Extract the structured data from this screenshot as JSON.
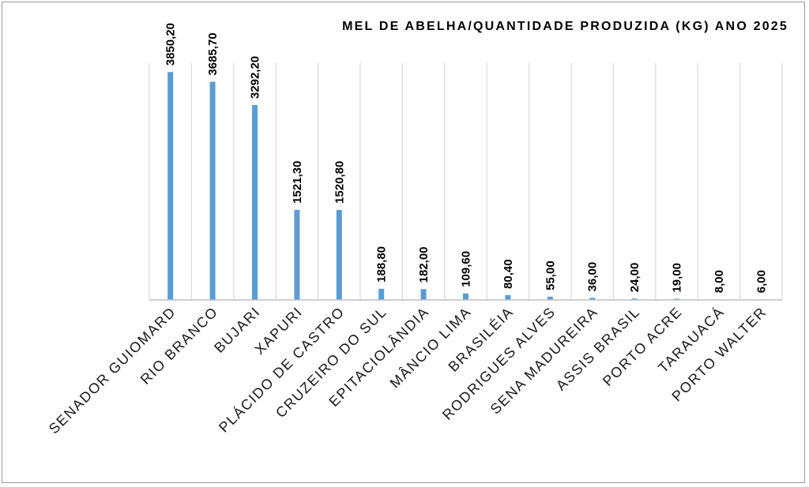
{
  "chart_data": {
    "type": "bar",
    "title": "MEL DE ABELHA/QUANTIDADE PRODUZIDA (KG) ANO 2025",
    "categories": [
      "SENADOR GUIOMARD",
      "RIO BRANCO",
      "BUJARI",
      "XAPURI",
      "PLÁCIDO DE CASTRO",
      "CRUZEIRO DO SUL",
      "EPITACIOLÂNDIA",
      "MÂNCIO LIMA",
      "BRASILÉIA",
      "RODRIGUES ALVES",
      "SENA MADUREIRA",
      "ASSIS BRASIL",
      "PORTO ACRE",
      "TARAUACÁ",
      "PORTO WALTER"
    ],
    "values": [
      3850.2,
      3685.7,
      3292.2,
      1521.3,
      1520.8,
      188.8,
      182.0,
      109.6,
      80.4,
      55.0,
      36.0,
      24.0,
      19.0,
      8.0,
      6.0
    ],
    "value_labels": [
      "3850,20",
      "3685,70",
      "3292,20",
      "1521,30",
      "1520,80",
      "188,80",
      "182,00",
      "109,60",
      "80,40",
      "55,00",
      "36,00",
      "24,00",
      "19,00",
      "8,00",
      "6,00"
    ],
    "ylim": [
      0,
      4000
    ],
    "grid": "vertical",
    "bar_color": "#5b9bd5",
    "grid_color": "#d9d9d9",
    "axis_color": "#bfbfbf"
  }
}
